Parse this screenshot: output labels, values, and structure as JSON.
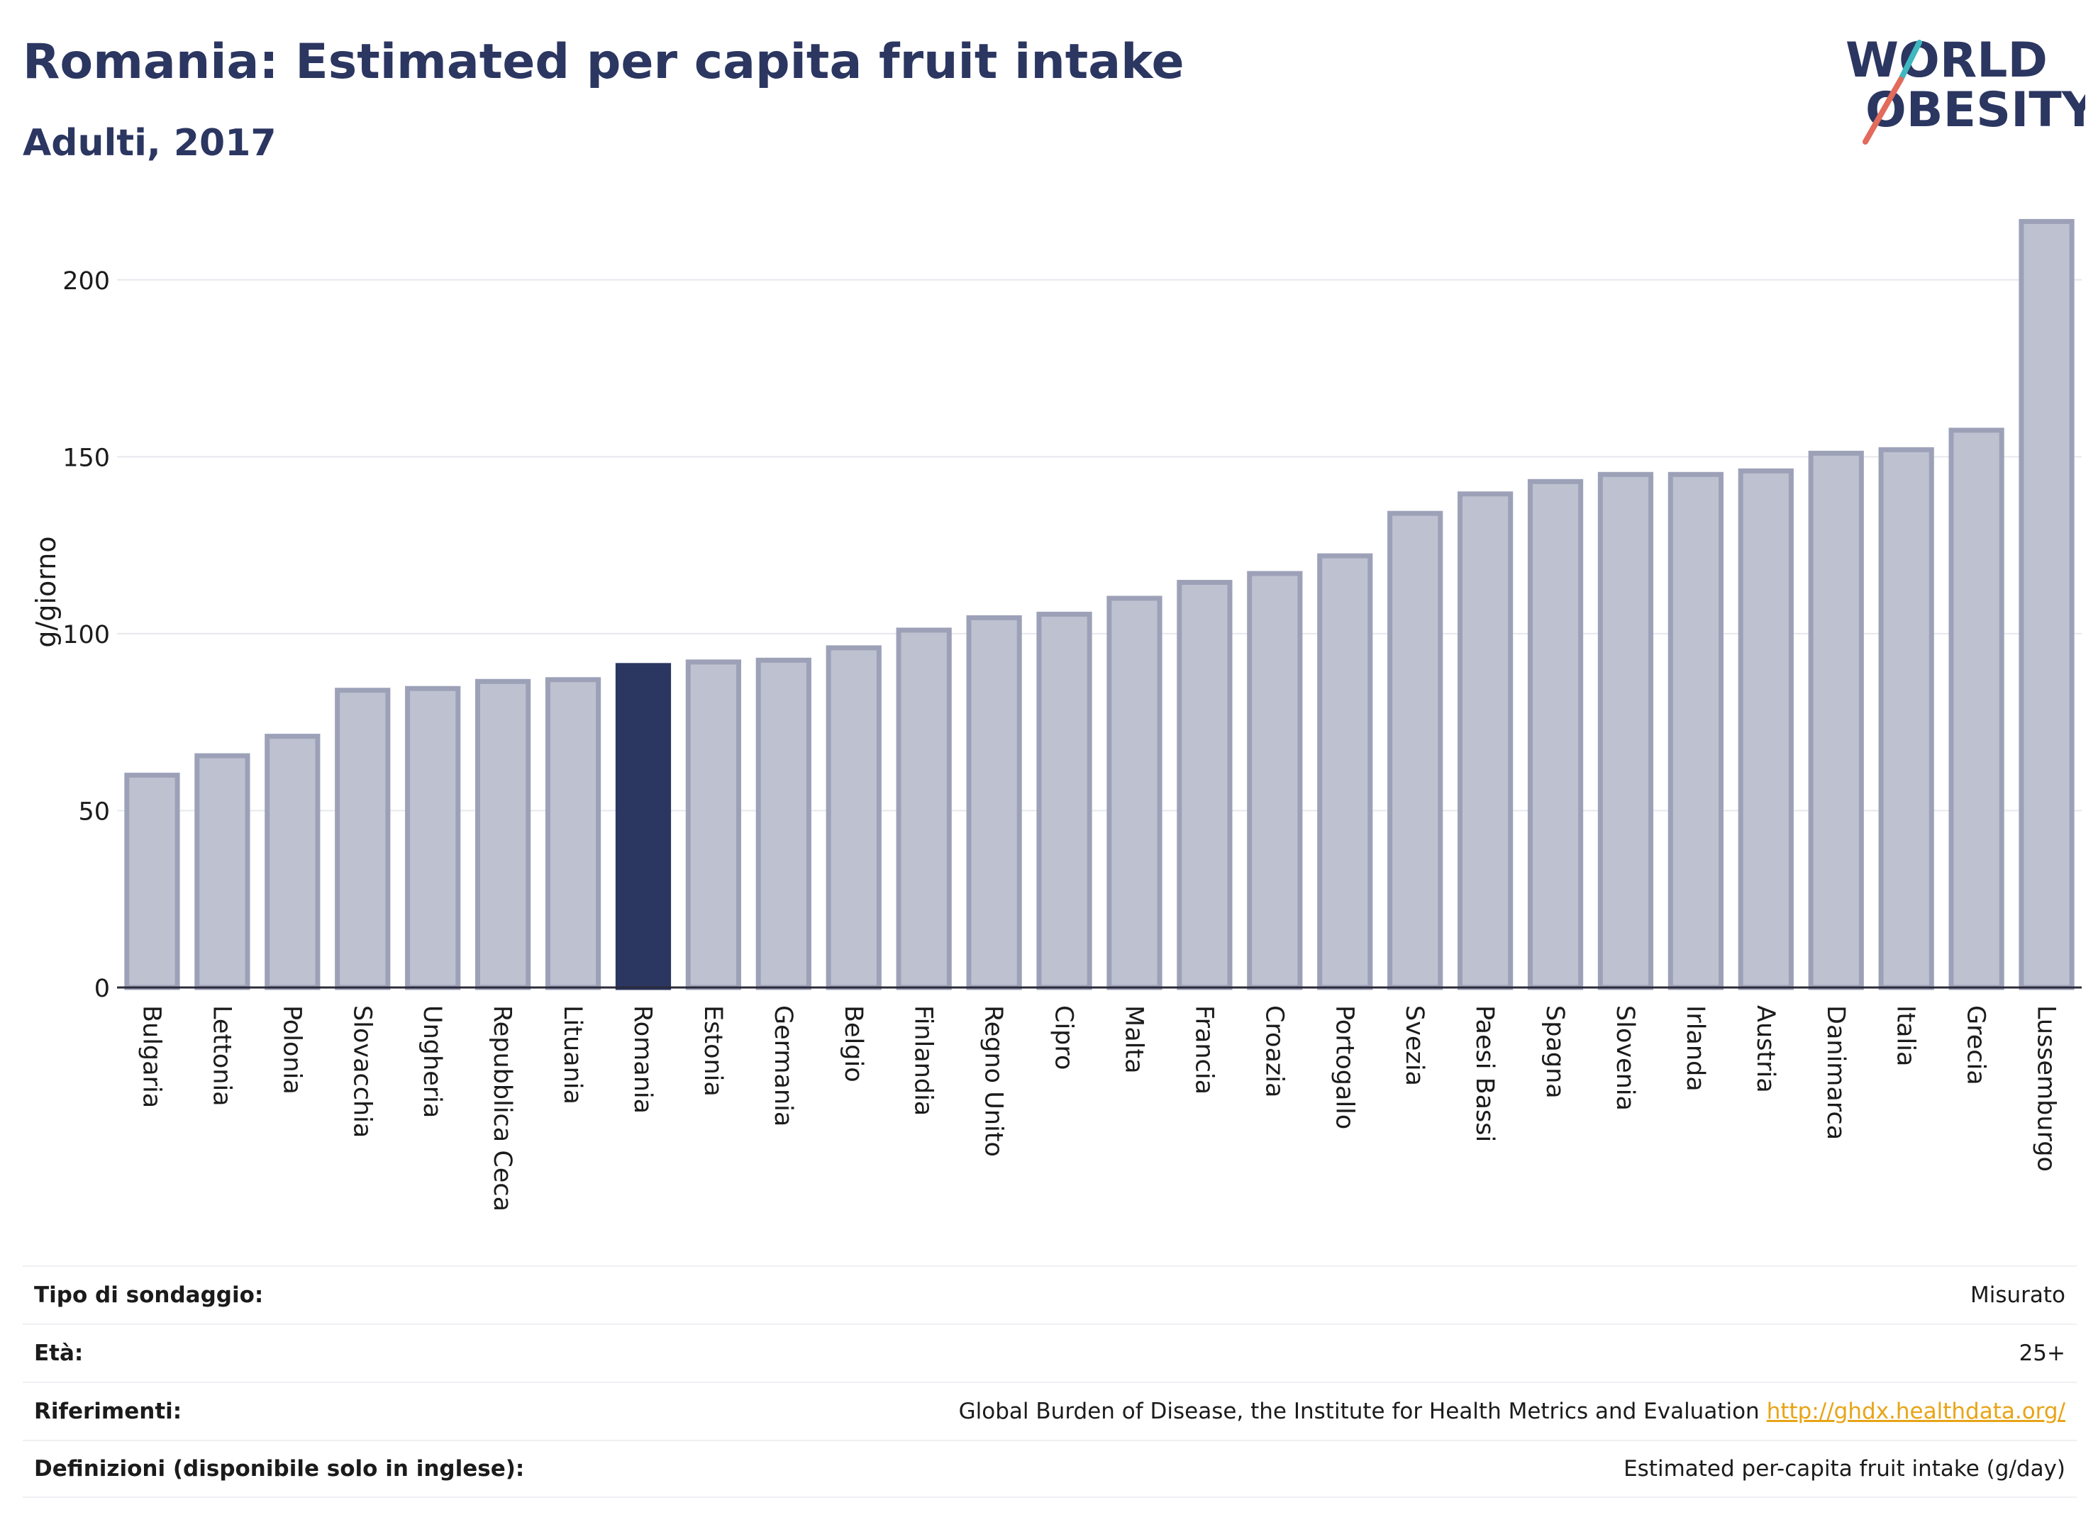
{
  "header": {
    "title": "Romania: Estimated per capita fruit intake",
    "subtitle": "Adulti, 2017"
  },
  "logo": {
    "line1": "WORLD",
    "line2": "OBESITY",
    "accent_colors": [
      "#e26b5b",
      "#3fb8c0"
    ]
  },
  "colors": {
    "highlight": "#2b3661",
    "bar": "#bec1cf",
    "bar_border": "#9da1b8",
    "grid": "#e6e8ee",
    "link": "#e8a417"
  },
  "chart_data": {
    "type": "bar",
    "ylabel": "g/giorno",
    "xlabel": "",
    "ylim": [
      0,
      225
    ],
    "yticks": [
      0,
      50,
      100,
      150,
      200
    ],
    "grid": true,
    "highlight": "Romania",
    "categories": [
      "Bulgaria",
      "Lettonia",
      "Polonia",
      "Slovacchia",
      "Ungheria",
      "Repubblica Ceca",
      "Lituania",
      "Romania",
      "Estonia",
      "Germania",
      "Belgio",
      "Finlandia",
      "Regno Unito",
      "Cipro",
      "Malta",
      "Francia",
      "Croazia",
      "Portogallo",
      "Svezia",
      "Paesi Bassi",
      "Spagna",
      "Slovenia",
      "Irlanda",
      "Austria",
      "Danimarca",
      "Italia",
      "Grecia",
      "Lussemburgo"
    ],
    "values": [
      60,
      65.5,
      71,
      84,
      84.5,
      86.5,
      87,
      91,
      92,
      92.5,
      96,
      101,
      104.5,
      105.5,
      110,
      114.5,
      117,
      122,
      134,
      139.5,
      143,
      145,
      145,
      146,
      151,
      152,
      157.5,
      216.5
    ]
  },
  "info_table": [
    {
      "label": "Tipo di sondaggio:",
      "value": "Misurato"
    },
    {
      "label": "Età:",
      "value": "25+"
    },
    {
      "label": "Riferimenti:",
      "value": "Global Burden of Disease, the Institute for Health Metrics and Evaluation",
      "link": "http://ghdx.healthdata.org/"
    },
    {
      "label": "Definizioni (disponibile solo in inglese):",
      "value": "Estimated per-capita fruit intake (g/day)"
    }
  ]
}
